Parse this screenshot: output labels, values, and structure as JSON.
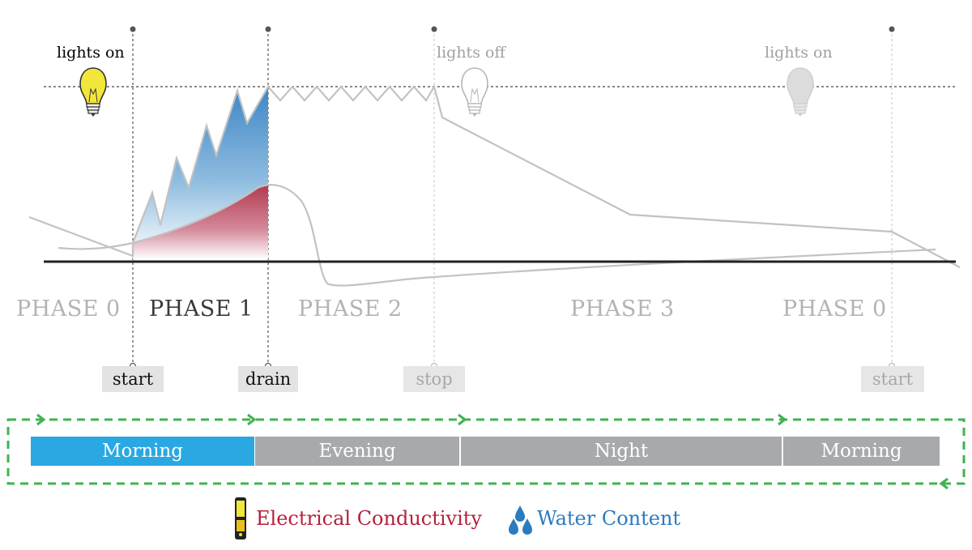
{
  "phases": [
    {
      "label": "PHASE 0",
      "color": "#b3b3b3"
    },
    {
      "label": "PHASE 1",
      "color": "#3a3a3a"
    },
    {
      "label": "PHASE 2",
      "color": "#b3b3b3"
    },
    {
      "label": "PHASE 3",
      "color": "#b3b3b3"
    },
    {
      "label": "PHASE 0",
      "color": "#b3b3b3"
    }
  ],
  "light_events": [
    {
      "label": "lights on",
      "bulb": "lit-bulb-icon",
      "color": "#111111"
    },
    {
      "label": "lights off",
      "bulb": "outline-bulb-icon",
      "color": "#a0a0a0"
    },
    {
      "label": "lights on",
      "bulb": "gray-bulb-icon",
      "color": "#a0a0a0"
    }
  ],
  "markers": [
    {
      "label": "start",
      "color": "#111111"
    },
    {
      "label": "drain",
      "color": "#111111"
    },
    {
      "label": "stop",
      "color": "#a8a8a8"
    },
    {
      "label": "start",
      "color": "#a8a8a8"
    }
  ],
  "timeline": {
    "segments": [
      {
        "label": "Morning",
        "color": "#2aa8e2"
      },
      {
        "label": "Evening",
        "color": "#a7a9ac"
      },
      {
        "label": "Night",
        "color": "#a7a9ac"
      },
      {
        "label": "Morning",
        "color": "#a7a9ac"
      }
    ],
    "cycle_color": "#3fb34f"
  },
  "legend": [
    {
      "label": "Electrical Conductivity",
      "icon": "ec-meter-icon",
      "color": "#b5203a"
    },
    {
      "label": "Water Content",
      "icon": "water-drops-icon",
      "color": "#2b7bbf"
    }
  ]
}
